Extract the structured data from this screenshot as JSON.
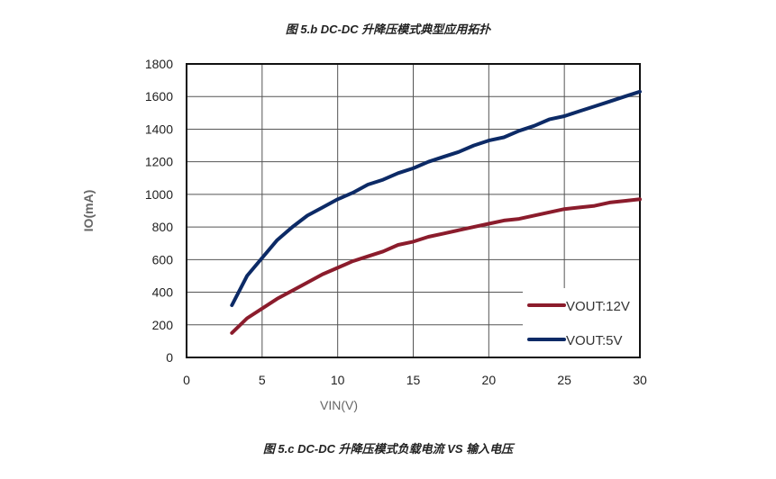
{
  "top_caption": "图 5.b    DC-DC 升降压模式典型应用拓扑",
  "bottom_caption": "图 5.c    DC-DC 升降压模式负载电流 VS 输入电压",
  "chart_data": {
    "type": "line",
    "title": "",
    "xlabel": "VIN(V)",
    "ylabel": "IO(mA)",
    "xlim": [
      0,
      30
    ],
    "ylim": [
      0,
      1800
    ],
    "xticks": [
      0,
      5,
      10,
      15,
      20,
      25,
      30
    ],
    "yticks": [
      0,
      200,
      400,
      600,
      800,
      1000,
      1200,
      1400,
      1600,
      1800
    ],
    "grid": true,
    "legend_position": "bottom-right",
    "x": [
      3,
      4,
      5,
      6,
      7,
      8,
      9,
      10,
      11,
      12,
      13,
      14,
      15,
      16,
      17,
      18,
      19,
      20,
      21,
      22,
      23,
      24,
      25,
      26,
      27,
      28,
      29,
      30
    ],
    "series": [
      {
        "name": "VOUT:12V",
        "color": "#8b1c2c",
        "values": [
          150,
          240,
          300,
          360,
          410,
          460,
          510,
          550,
          590,
          620,
          650,
          690,
          710,
          740,
          760,
          780,
          800,
          820,
          840,
          850,
          870,
          890,
          910,
          920,
          930,
          950,
          960,
          970
        ]
      },
      {
        "name": "VOUT:5V",
        "color": "#0c2a66",
        "values": [
          320,
          500,
          610,
          720,
          800,
          870,
          920,
          970,
          1010,
          1060,
          1090,
          1130,
          1160,
          1200,
          1230,
          1260,
          1300,
          1330,
          1350,
          1390,
          1420,
          1460,
          1480,
          1510,
          1540,
          1570,
          1600,
          1630
        ]
      }
    ]
  }
}
